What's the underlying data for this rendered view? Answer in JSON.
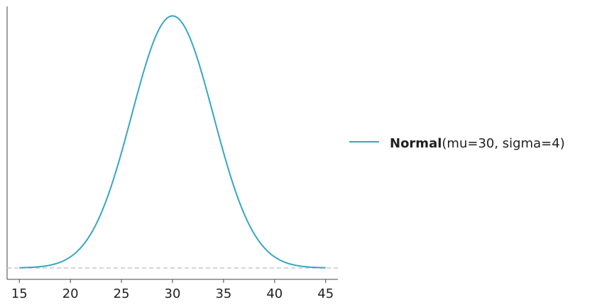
{
  "chart_data": {
    "type": "line",
    "title": "",
    "xlabel": "",
    "ylabel": "",
    "xlim": [
      13.8,
      46.2
    ],
    "ylim": [
      -0.0045,
      0.1035
    ],
    "x_ticks": [
      15,
      20,
      25,
      30,
      35,
      40,
      45
    ],
    "grid": false,
    "legend_position": "right",
    "distribution": {
      "family": "Normal",
      "mu": 30,
      "sigma": 4,
      "x_range": [
        15,
        45
      ]
    },
    "series": [
      {
        "name_bold": "Normal",
        "name_params": "(mu=30, sigma=4)",
        "color": "#36a8c0"
      }
    ],
    "baseline": {
      "y": 0,
      "style": "dashed",
      "color": "#c8c8c8"
    }
  }
}
